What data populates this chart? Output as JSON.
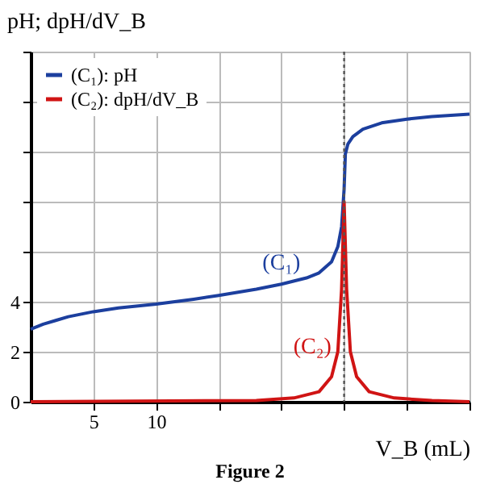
{
  "chart_data": {
    "type": "line",
    "xlabel": "V_B (mL)",
    "ylabel": "pH; dpH/dV_B",
    "xlim": [
      0,
      35
    ],
    "ylim": [
      0,
      14
    ],
    "xticks": [
      5,
      10,
      {
        "value": 15,
        "label": null
      },
      {
        "value": 20,
        "label": null
      },
      {
        "value": 25,
        "label": null
      },
      {
        "value": 30,
        "label": null
      },
      {
        "value": 35,
        "label": null
      }
    ],
    "yticks": [
      0,
      2,
      4,
      {
        "value": 6,
        "label": null
      },
      {
        "value": 8,
        "label": null
      },
      {
        "value": 10,
        "label": null
      },
      {
        "value": 12,
        "label": null
      },
      {
        "value": 14,
        "label": null
      }
    ],
    "grid": true,
    "legend": "top left",
    "line_style": "solid",
    "marker": "none",
    "series": [
      {
        "name": "(C₁): pH",
        "color": "#1c3f9e",
        "x": [
          0,
          1,
          2,
          3,
          5,
          7,
          10,
          13,
          15,
          18,
          20,
          22,
          23,
          24,
          24.5,
          24.8,
          25,
          25.1,
          25.3,
          25.7,
          26.5,
          28,
          30,
          32,
          35
        ],
        "values": [
          2.9,
          3.1,
          3.25,
          3.4,
          3.6,
          3.75,
          3.9,
          4.1,
          4.25,
          4.5,
          4.7,
          4.95,
          5.15,
          5.6,
          6.2,
          7,
          8.5,
          9.9,
          10.3,
          10.6,
          10.9,
          11.15,
          11.3,
          11.4,
          11.5
        ]
      },
      {
        "name": "(C₂): dpH/dV_B",
        "color": "#d01414",
        "x": [
          0,
          18,
          21,
          23,
          24,
          24.5,
          24.8,
          25,
          25.2,
          25.5,
          26,
          27,
          29,
          32,
          35
        ],
        "values": [
          0,
          0.05,
          0.15,
          0.4,
          1.0,
          2.0,
          4.5,
          8,
          4.5,
          2.0,
          1.0,
          0.4,
          0.15,
          0.05,
          0
        ]
      }
    ],
    "ref_lines": [
      {
        "axis": "x",
        "value": 25,
        "color": "#555555",
        "line_style": "dotted"
      }
    ],
    "annotations": [
      {
        "text": "(C₁)",
        "x": 20,
        "y": 4.7
      },
      {
        "text": "(C₂)",
        "x": 24.5,
        "y": 2.0
      },
      "Figure 2"
    ]
  }
}
